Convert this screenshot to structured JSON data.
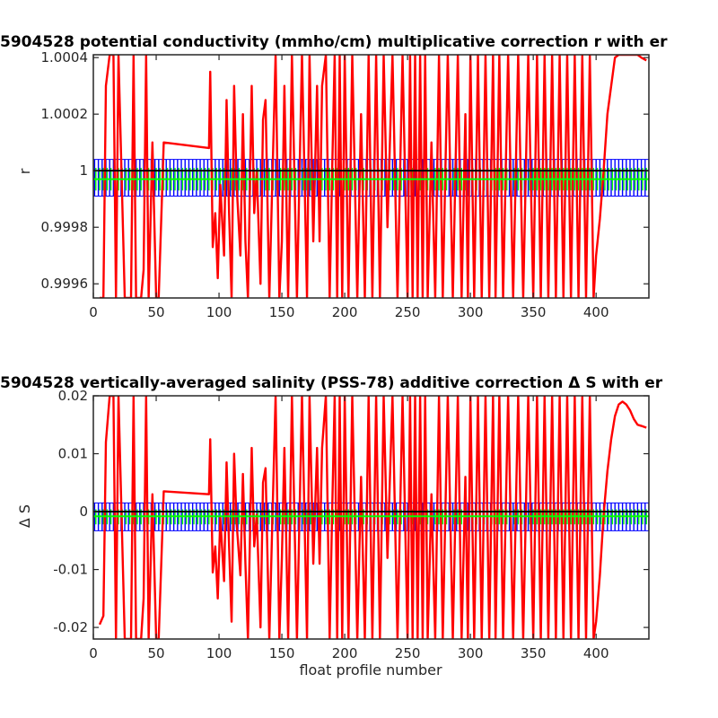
{
  "chart_data": [
    {
      "type": "line",
      "title": "5904528 potential conductivity (mmho/cm) multiplicative correction r with er",
      "xlabel": "",
      "ylabel": "r",
      "xlim": [
        0,
        442
      ],
      "ylim": [
        0.99955,
        1.00041
      ],
      "xticks": [
        "0",
        "50",
        "100",
        "150",
        "200",
        "250",
        "300",
        "350",
        "400"
      ],
      "yticks": [
        "0.9996",
        "0.9998",
        "1",
        "1.0002",
        "1.0004"
      ],
      "grid": false,
      "reference_line": 1.0,
      "series": [
        {
          "color": "#ff0000",
          "x": [
            5,
            8,
            10,
            13,
            16,
            18,
            20,
            25,
            30,
            32,
            34,
            38,
            40,
            42,
            44,
            47,
            50,
            52,
            56,
            92,
            93,
            95,
            97,
            99,
            101,
            104,
            106,
            108,
            110,
            112,
            114,
            117,
            119,
            121,
            123,
            126,
            128,
            130,
            133,
            135,
            137,
            140,
            145,
            148,
            150,
            152,
            155,
            158,
            162,
            166,
            170,
            172,
            175,
            178,
            180,
            182,
            185,
            188,
            190,
            192,
            194,
            196,
            198,
            200,
            203,
            206,
            210,
            213,
            216,
            219,
            222,
            225,
            228,
            231,
            234,
            238,
            242,
            246,
            250,
            252,
            254,
            256,
            258,
            260,
            262,
            264,
            266,
            269,
            272,
            275,
            278,
            282,
            286,
            290,
            293,
            296,
            298,
            300,
            303,
            306,
            309,
            312,
            315,
            318,
            320,
            323,
            326,
            330,
            334,
            338,
            342,
            346,
            350,
            353,
            356,
            359,
            362,
            365,
            368,
            371,
            374,
            377,
            380,
            383,
            386,
            389,
            392,
            395,
            398,
            400,
            403,
            406,
            409,
            412,
            415,
            418,
            421,
            424,
            427,
            430,
            433,
            436,
            440
          ],
          "y": [
            0.99955,
            0.99955,
            1.0003,
            1.00041,
            1.00041,
            0.99955,
            1.00041,
            0.99955,
            0.99955,
            1.00041,
            0.99955,
            0.99955,
            0.99965,
            1.00041,
            0.99955,
            1.0001,
            0.99955,
            0.99955,
            1.0001,
            1.00008,
            1.00035,
            0.99973,
            0.99985,
            0.99962,
            0.99995,
            0.9997,
            1.00025,
            0.99985,
            0.99955,
            1.0003,
            0.99995,
            0.9997,
            1.0002,
            0.99975,
            0.99955,
            1.0003,
            0.99985,
            1.0,
            0.9996,
            1.00018,
            1.00025,
            0.99955,
            1.00041,
            0.99955,
            0.99975,
            1.0003,
            0.99955,
            1.00041,
            0.99955,
            1.00041,
            0.99955,
            1.00041,
            0.99975,
            1.0003,
            0.99975,
            1.0003,
            1.00041,
            0.99955,
            1.0,
            1.00041,
            0.99955,
            1.00041,
            0.99955,
            1.00041,
            0.99955,
            1.00041,
            0.99955,
            1.0002,
            0.99955,
            1.00041,
            0.99955,
            1.00041,
            0.99955,
            1.00041,
            0.9998,
            1.00041,
            0.99955,
            1.00041,
            0.99955,
            1.00041,
            0.99955,
            1.00041,
            0.99955,
            1.00041,
            0.99955,
            1.00041,
            0.99955,
            1.0001,
            0.99955,
            1.00041,
            0.99955,
            1.00041,
            0.99955,
            1.00041,
            0.99955,
            1.0002,
            0.99955,
            1.00041,
            0.99955,
            1.00041,
            0.99955,
            1.00041,
            0.99955,
            1.00041,
            0.99955,
            1.00041,
            0.99955,
            1.00041,
            0.99955,
            1.00041,
            0.99955,
            1.00041,
            0.99955,
            1.00041,
            0.99955,
            1.00041,
            0.99955,
            1.00041,
            0.99955,
            1.00041,
            0.99955,
            1.00041,
            0.99955,
            1.00041,
            0.99955,
            1.00041,
            0.99955,
            1.00041,
            0.99955,
            0.9997,
            0.99983,
            1.0,
            1.0002,
            1.0003,
            1.0004,
            1.00041,
            1.00041,
            1.00041,
            1.00041,
            1.00041,
            1.00041,
            1.0004,
            1.00039
          ]
        },
        {
          "color": "#00ff00",
          "x": [
            0,
            442
          ],
          "y": [
            0.99997,
            0.99997
          ]
        }
      ],
      "error_band": {
        "color": "#0000ff",
        "low": 0.99991,
        "high": 1.00004
      },
      "inner_band": {
        "color": "#00ff00",
        "low": 0.99993,
        "high": 1.00001
      }
    },
    {
      "type": "line",
      "title": "5904528 vertically-averaged salinity (PSS-78) additive correction Δ S with er",
      "xlabel": "float profile number",
      "ylabel": "Δ S",
      "xlim": [
        0,
        442
      ],
      "ylim": [
        -0.022,
        0.02
      ],
      "xticks": [
        "0",
        "50",
        "100",
        "150",
        "200",
        "250",
        "300",
        "350",
        "400"
      ],
      "yticks": [
        "-0.02",
        "-0.01",
        "0",
        "0.01",
        "0.02"
      ],
      "grid": false,
      "reference_line": 0.0,
      "series": [
        {
          "color": "#ff0000",
          "x": [
            5,
            8,
            10,
            13,
            16,
            18,
            20,
            25,
            30,
            32,
            34,
            38,
            40,
            42,
            44,
            47,
            50,
            52,
            56,
            92,
            93,
            95,
            97,
            99,
            101,
            104,
            106,
            108,
            110,
            112,
            114,
            117,
            119,
            121,
            123,
            126,
            128,
            130,
            133,
            135,
            137,
            140,
            145,
            148,
            150,
            152,
            155,
            158,
            162,
            166,
            170,
            172,
            175,
            178,
            180,
            182,
            185,
            188,
            190,
            192,
            194,
            196,
            198,
            200,
            203,
            206,
            210,
            213,
            216,
            219,
            222,
            225,
            228,
            231,
            234,
            238,
            242,
            246,
            250,
            252,
            254,
            256,
            258,
            260,
            262,
            264,
            266,
            269,
            272,
            275,
            278,
            282,
            286,
            290,
            293,
            296,
            298,
            300,
            303,
            306,
            309,
            312,
            315,
            318,
            320,
            323,
            326,
            330,
            334,
            338,
            342,
            346,
            350,
            353,
            356,
            359,
            362,
            365,
            368,
            371,
            374,
            377,
            380,
            383,
            386,
            389,
            392,
            395,
            398,
            400,
            403,
            406,
            409,
            412,
            415,
            418,
            421,
            424,
            427,
            430,
            433,
            436,
            440
          ],
          "y": [
            -0.0195,
            -0.018,
            0.012,
            0.02,
            0.02,
            -0.022,
            0.02,
            -0.022,
            -0.022,
            0.02,
            -0.022,
            -0.022,
            -0.015,
            0.02,
            -0.022,
            0.003,
            -0.022,
            -0.022,
            0.0035,
            0.003,
            0.0125,
            -0.0105,
            -0.006,
            -0.015,
            -0.001,
            -0.012,
            0.0085,
            -0.006,
            -0.019,
            0.01,
            -0.002,
            -0.011,
            0.0065,
            -0.009,
            -0.022,
            0.011,
            -0.006,
            -0.0005,
            -0.02,
            0.005,
            0.0075,
            -0.022,
            0.02,
            -0.022,
            -0.008,
            0.011,
            -0.022,
            0.02,
            -0.022,
            0.02,
            -0.022,
            0.02,
            -0.009,
            0.011,
            -0.009,
            0.011,
            0.02,
            -0.022,
            0.0,
            0.02,
            -0.022,
            0.02,
            -0.022,
            0.02,
            -0.022,
            0.02,
            -0.022,
            0.006,
            -0.022,
            0.02,
            -0.022,
            0.02,
            -0.022,
            0.02,
            -0.008,
            0.02,
            -0.022,
            0.02,
            -0.022,
            0.02,
            -0.022,
            0.02,
            -0.022,
            0.02,
            -0.022,
            0.02,
            -0.022,
            0.003,
            -0.022,
            0.02,
            -0.022,
            0.02,
            -0.022,
            0.02,
            -0.022,
            0.006,
            -0.022,
            0.02,
            -0.022,
            0.02,
            -0.022,
            0.02,
            -0.022,
            0.02,
            -0.022,
            0.02,
            -0.022,
            0.02,
            -0.022,
            0.02,
            -0.022,
            0.02,
            -0.022,
            0.02,
            -0.022,
            0.02,
            -0.022,
            0.02,
            -0.022,
            0.02,
            -0.022,
            0.02,
            -0.022,
            0.02,
            -0.022,
            0.02,
            -0.022,
            0.02,
            -0.022,
            -0.019,
            -0.011,
            -0.0005,
            0.007,
            0.0125,
            0.0165,
            0.0185,
            0.019,
            0.0185,
            0.0175,
            0.016,
            0.015,
            0.0148,
            0.0145
          ]
        },
        {
          "color": "#00ff00",
          "x": [
            0,
            442
          ],
          "y": [
            -0.0008,
            -0.0008
          ]
        }
      ],
      "error_band": {
        "color": "#0000ff",
        "low": -0.0033,
        "high": 0.0015
      },
      "inner_band": {
        "color": "#00ff00",
        "low": -0.0022,
        "high": 0.0004
      }
    }
  ]
}
